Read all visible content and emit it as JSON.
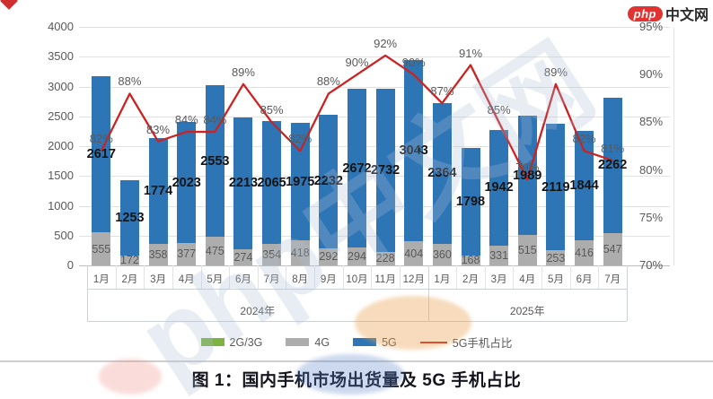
{
  "logo": {
    "badge": "php",
    "text": "中文网"
  },
  "watermark": {
    "text": "php中文网"
  },
  "figure_title": "图 1：国内手机市场出货量及 5G 手机占比",
  "chart_data": {
    "type": "bar",
    "subtype": "stacked-bar-with-line",
    "title": "图 1：国内手机市场出货量及 5G 手机占比",
    "categories": [
      "1月",
      "2月",
      "3月",
      "4月",
      "5月",
      "6月",
      "7月",
      "8月",
      "9月",
      "10月",
      "11月",
      "12月",
      "1月",
      "2月",
      "3月",
      "4月",
      "5月",
      "6月",
      "7月"
    ],
    "year_groups": [
      {
        "label": "2024年",
        "count": 12
      },
      {
        "label": "2025年",
        "count": 7
      }
    ],
    "left_axis": {
      "min": 0,
      "max": 4000,
      "step": 500,
      "tick_labels": [
        "4000",
        "3500",
        "3000",
        "2500",
        "2000",
        "1500",
        "1000",
        "500",
        "0"
      ]
    },
    "right_axis": {
      "min": 70,
      "max": 95,
      "step": 5,
      "tick_labels": [
        "95%",
        "90%",
        "85%",
        "80%",
        "75%",
        "70%"
      ]
    },
    "series": [
      {
        "name": "2G/3G",
        "type": "bar",
        "color": "#7CB342",
        "values": []
      },
      {
        "name": "4G",
        "type": "bar",
        "color": "#ADADAD",
        "values": [
          555,
          172,
          358,
          377,
          475,
          274,
          354,
          418,
          292,
          294,
          228,
          404,
          360,
          168,
          331,
          515,
          253,
          416,
          547
        ]
      },
      {
        "name": "5G",
        "type": "bar",
        "color": "#2E75B6",
        "values": [
          2617,
          1253,
          1774,
          2023,
          2553,
          2213,
          2065,
          1975,
          2232,
          2672,
          2732,
          3043,
          2364,
          1798,
          1942,
          1989,
          2119,
          1844,
          2262
        ]
      },
      {
        "name": "5G手机占比",
        "type": "line",
        "color": "#CC2222",
        "values": [
          82,
          88,
          83,
          84,
          84,
          89,
          85,
          82,
          88,
          90,
          92,
          90,
          87,
          91,
          85,
          79,
          89,
          82,
          81
        ]
      }
    ],
    "legend": [
      "2G/3G",
      "4G",
      "5G",
      "5G手机占比"
    ]
  }
}
